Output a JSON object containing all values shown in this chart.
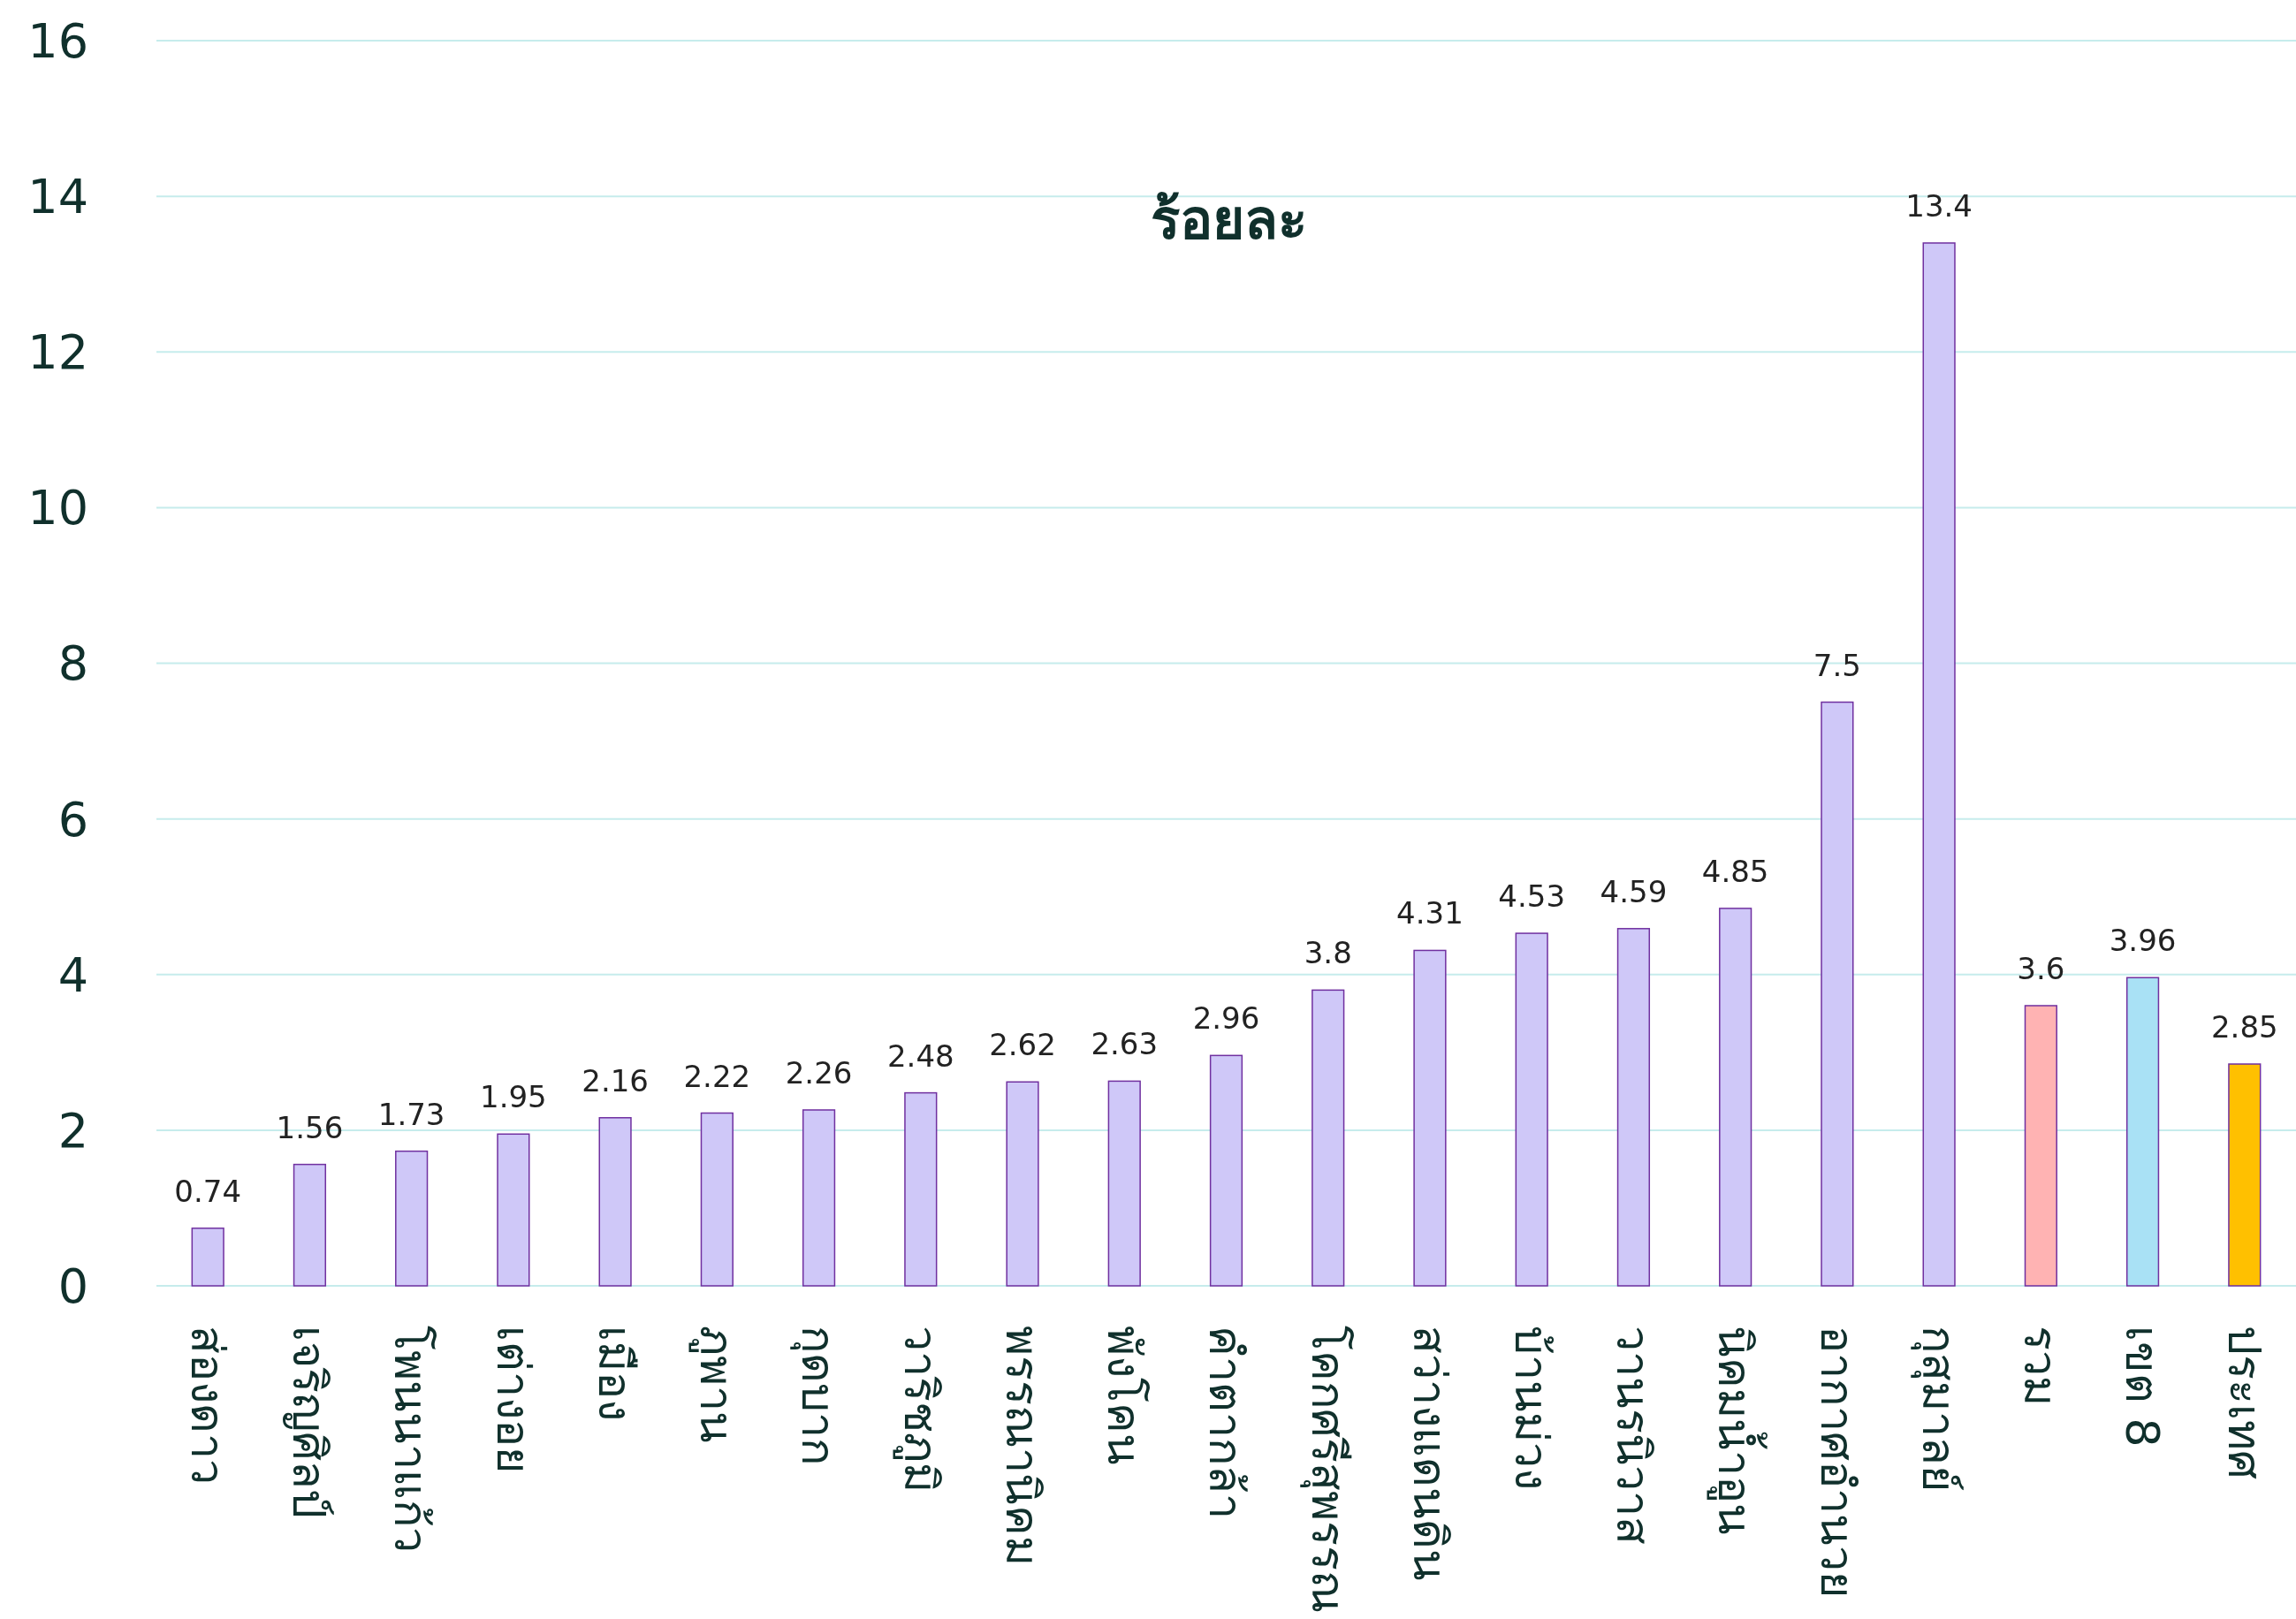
{
  "chart_data": {
    "type": "bar",
    "title": "ร้อยละ",
    "categories": [
      "ส่องดาว",
      "เจริญศิลป์",
      "โพนนาแก้ว",
      "เต่างอย",
      "เมือง",
      "ภูพาน",
      "กุดบาก",
      "วาริชภูมิ",
      "พรรณานิคม",
      "พังโคน",
      "คำตากล้า",
      "โคกศรีสุพรรณ",
      "สว่างแดนดิน",
      "บ้านม่วง",
      "วานรนิวาส",
      "นิคมน้ำอูน",
      "อากาศอำนวย",
      "กุสุมาลย์",
      "รวม",
      "เขต 8",
      "ประเทศ"
    ],
    "values": [
      0.74,
      1.56,
      1.73,
      1.95,
      2.16,
      2.22,
      2.26,
      2.48,
      2.62,
      2.63,
      2.96,
      3.8,
      4.31,
      4.53,
      4.59,
      4.85,
      7.5,
      13.4,
      3.6,
      3.96,
      2.85
    ],
    "colors": [
      "#cfc8f8",
      "#cfc8f8",
      "#cfc8f8",
      "#cfc8f8",
      "#cfc8f8",
      "#cfc8f8",
      "#cfc8f8",
      "#cfc8f8",
      "#cfc8f8",
      "#cfc8f8",
      "#cfc8f8",
      "#cfc8f8",
      "#cfc8f8",
      "#cfc8f8",
      "#cfc8f8",
      "#cfc8f8",
      "#cfc8f8",
      "#cfc8f8",
      "#ffb3b3",
      "#a9e1f5",
      "#ffc000"
    ],
    "ylim": [
      0,
      16
    ],
    "yticks": [
      0,
      2,
      4,
      6,
      8,
      10,
      12,
      14,
      16
    ],
    "grid": "y",
    "data_labels": true
  }
}
